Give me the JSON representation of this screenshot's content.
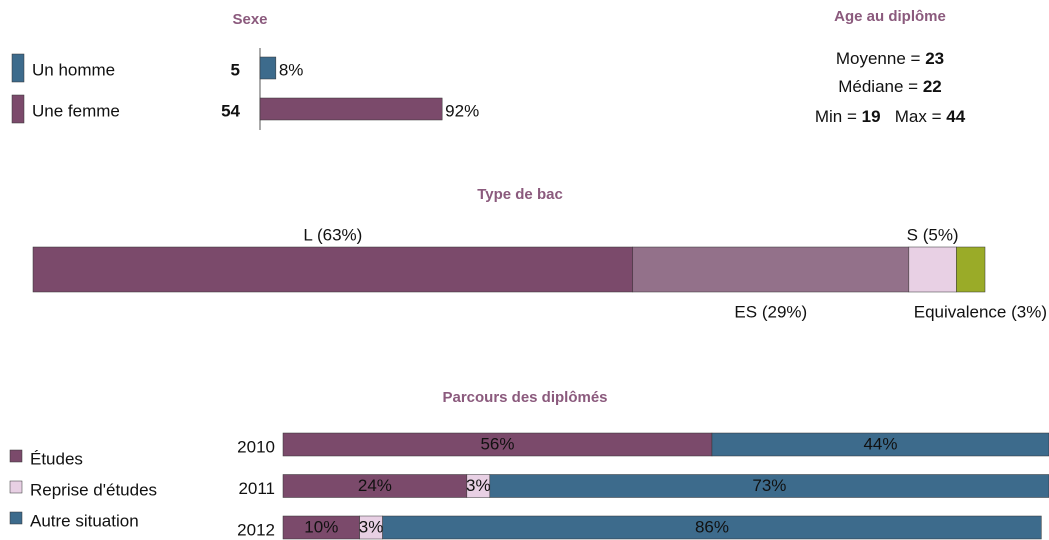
{
  "chart_data": [
    {
      "type": "bar",
      "title": "Sexe",
      "categories": [
        "Un homme",
        "Une femme"
      ],
      "counts": [
        5,
        54
      ],
      "values": [
        8,
        92
      ],
      "value_labels": [
        "8%",
        "92%"
      ],
      "colors": [
        "#3d6b8c",
        "#7b4a6b"
      ],
      "xlim": [
        0,
        100
      ]
    },
    {
      "type": "segmented-bar",
      "title": "Type de bac",
      "labels": [
        "L (63%)",
        "ES (29%)",
        "S (5%)",
        "Equivalence (3%)"
      ],
      "values": [
        63,
        29,
        5,
        3
      ],
      "colors": [
        "#7b4a6b",
        "#93718a",
        "#e8d0e4",
        "#9aab28"
      ],
      "xlim": [
        0,
        100
      ]
    },
    {
      "type": "stacked-bar",
      "title": "Parcours des diplômés",
      "categories": [
        "2010",
        "2011",
        "2012"
      ],
      "xlim": [
        0,
        100
      ],
      "series": [
        {
          "name": "Études",
          "color": "#7b4a6b",
          "values": [
            56,
            24,
            10
          ],
          "value_labels": [
            "56%",
            "24%",
            "10%"
          ]
        },
        {
          "name": "Reprise d'études",
          "color": "#e8d0e4",
          "values": [
            null,
            3,
            3
          ],
          "value_labels": [
            null,
            "3%",
            "3%"
          ]
        },
        {
          "name": "Autre situation",
          "color": "#3d6b8c",
          "values": [
            44,
            73,
            86
          ],
          "value_labels": [
            "44%",
            "73%",
            "86%"
          ]
        }
      ]
    }
  ],
  "age": {
    "title": "Age au diplôme",
    "sep": "=",
    "items": [
      {
        "label": "Moyenne",
        "value": 23
      },
      {
        "label": "Médiane",
        "value": 22
      },
      {
        "label": "Min",
        "value": 19
      },
      {
        "label": "Max",
        "value": 44
      }
    ]
  }
}
